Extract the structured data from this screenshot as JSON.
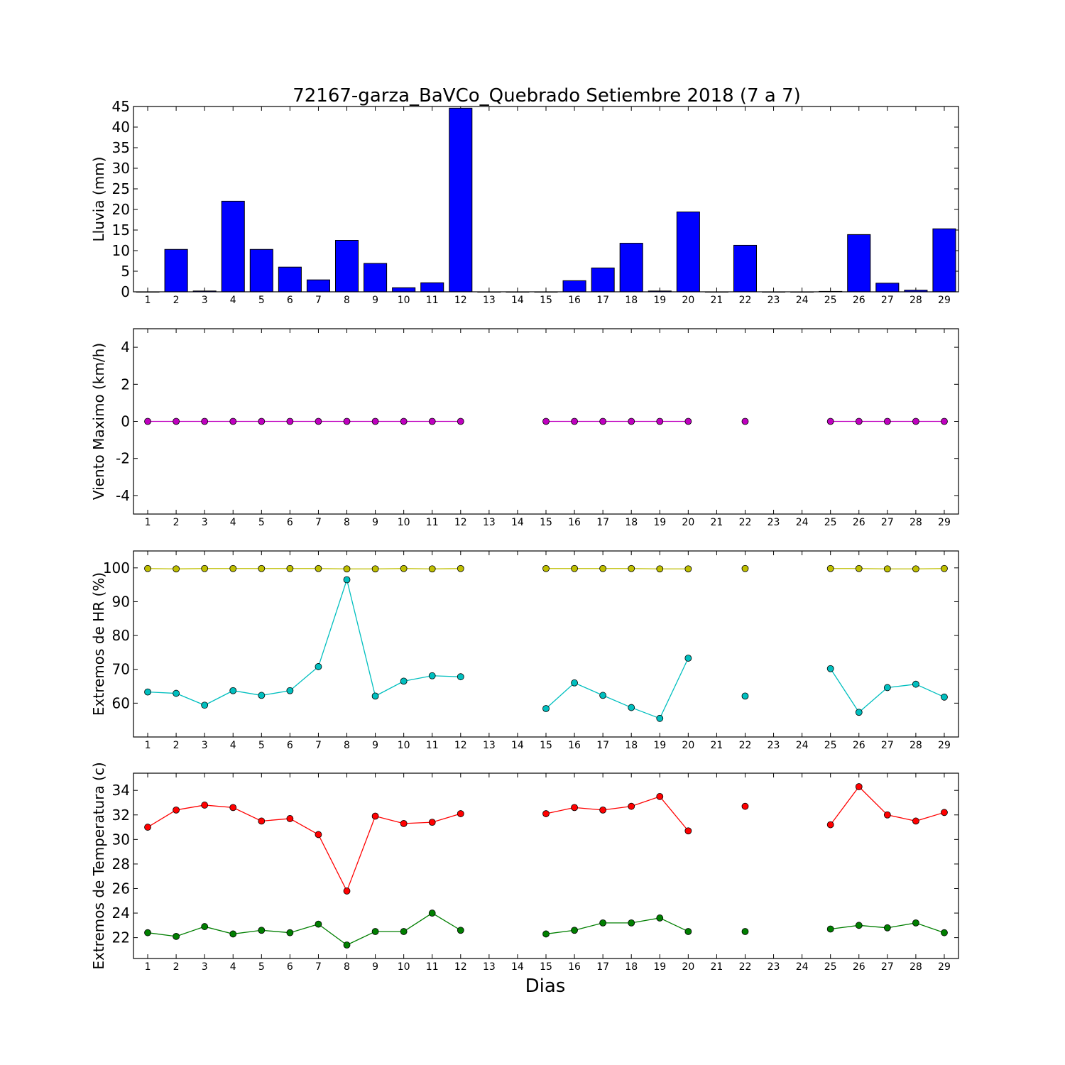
{
  "figure": {
    "title": "72167-garza_BaVCo_Quebrado Setiembre 2018  (7 a 7)",
    "xlabel": "Dias"
  },
  "chart_data": [
    {
      "type": "bar",
      "ylabel": "Lluvia (mm)",
      "x": [
        1,
        2,
        3,
        4,
        5,
        6,
        7,
        8,
        9,
        10,
        11,
        12,
        13,
        14,
        15,
        16,
        17,
        18,
        19,
        20,
        21,
        22,
        23,
        24,
        25,
        26,
        27,
        28,
        29
      ],
      "xlim": [
        0.5,
        29.5
      ],
      "ylim": [
        0,
        45
      ],
      "yticks": [
        0,
        5,
        10,
        15,
        20,
        25,
        30,
        35,
        40,
        45
      ],
      "color": "#0000ff",
      "series": [
        {
          "values": [
            0,
            10.3,
            0.2,
            22.0,
            10.3,
            6.0,
            2.9,
            12.5,
            6.9,
            1.0,
            2.2,
            44.6,
            0,
            0,
            0,
            2.7,
            5.8,
            11.8,
            0.2,
            19.4,
            0,
            11.3,
            0,
            0,
            0.1,
            13.9,
            2.1,
            0.4,
            15.3
          ]
        }
      ]
    },
    {
      "type": "line",
      "ylabel": "Viento Maximo (km/h)",
      "x": [
        1,
        2,
        3,
        4,
        5,
        6,
        7,
        8,
        9,
        10,
        11,
        12,
        13,
        14,
        15,
        16,
        17,
        18,
        19,
        20,
        21,
        22,
        23,
        24,
        25,
        26,
        27,
        28,
        29
      ],
      "xlim": [
        0.5,
        29.5
      ],
      "ylim": [
        -5,
        5
      ],
      "yticks": [
        -4,
        -2,
        0,
        2,
        4
      ],
      "series": [
        {
          "color": "#bf00bf",
          "values": [
            0,
            0,
            0,
            0,
            0,
            0,
            0,
            0,
            0,
            0,
            0,
            0,
            null,
            null,
            0,
            0,
            0,
            0,
            0,
            0,
            null,
            0,
            null,
            null,
            0,
            0,
            0,
            0,
            0
          ]
        }
      ]
    },
    {
      "type": "line",
      "ylabel": "Extremos de HR (%)",
      "x": [
        1,
        2,
        3,
        4,
        5,
        6,
        7,
        8,
        9,
        10,
        11,
        12,
        13,
        14,
        15,
        16,
        17,
        18,
        19,
        20,
        21,
        22,
        23,
        24,
        25,
        26,
        27,
        28,
        29
      ],
      "xlim": [
        0.5,
        29.5
      ],
      "ylim": [
        50,
        105
      ],
      "yticks": [
        60,
        70,
        80,
        90,
        100
      ],
      "series": [
        {
          "color": "#bfbf00",
          "values": [
            99.8,
            99.7,
            99.8,
            99.8,
            99.8,
            99.8,
            99.8,
            99.7,
            99.7,
            99.8,
            99.7,
            99.8,
            null,
            null,
            99.8,
            99.8,
            99.8,
            99.8,
            99.7,
            99.7,
            null,
            99.8,
            null,
            null,
            99.8,
            99.8,
            99.7,
            99.7,
            99.8
          ]
        },
        {
          "color": "#00bfbf",
          "values": [
            63.3,
            62.9,
            59.4,
            63.7,
            62.3,
            63.7,
            70.8,
            96.5,
            62.1,
            66.5,
            68.1,
            67.8,
            null,
            null,
            58.4,
            66.0,
            62.3,
            58.7,
            55.5,
            73.3,
            null,
            62.1,
            null,
            null,
            70.2,
            57.3,
            64.6,
            65.6,
            61.8
          ]
        }
      ]
    },
    {
      "type": "line",
      "ylabel": "Extremos de Temperatura (c)",
      "x": [
        1,
        2,
        3,
        4,
        5,
        6,
        7,
        8,
        9,
        10,
        11,
        12,
        13,
        14,
        15,
        16,
        17,
        18,
        19,
        20,
        21,
        22,
        23,
        24,
        25,
        26,
        27,
        28,
        29
      ],
      "xlim": [
        0.5,
        29.5
      ],
      "ylim": [
        20.3,
        35.4
      ],
      "yticks": [
        22,
        24,
        26,
        28,
        30,
        32,
        34
      ],
      "series": [
        {
          "color": "#ff0000",
          "values": [
            31.0,
            32.4,
            32.8,
            32.6,
            31.5,
            31.7,
            30.4,
            25.8,
            31.9,
            31.3,
            31.4,
            32.1,
            null,
            null,
            32.1,
            32.6,
            32.4,
            32.7,
            33.5,
            30.7,
            null,
            32.7,
            null,
            null,
            31.2,
            34.3,
            32.0,
            31.5,
            32.2
          ]
        },
        {
          "color": "#007f00",
          "values": [
            22.4,
            22.1,
            22.9,
            22.3,
            22.6,
            22.4,
            23.1,
            21.4,
            22.5,
            22.5,
            24.0,
            22.6,
            null,
            null,
            22.3,
            22.6,
            23.2,
            23.2,
            23.6,
            22.5,
            null,
            22.5,
            null,
            null,
            22.7,
            23.0,
            22.8,
            23.2,
            22.4
          ]
        }
      ]
    }
  ]
}
